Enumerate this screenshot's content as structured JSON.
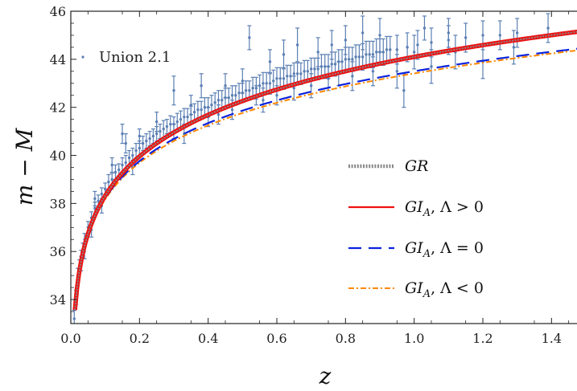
{
  "chart_data": {
    "type": "scatter",
    "xlabel": "z",
    "ylabel": "m − M",
    "xlim": [
      0,
      1.5
    ],
    "ylim": [
      33,
      46
    ],
    "x_ticks": [
      0.0,
      0.2,
      0.4,
      0.6,
      0.8,
      1.0,
      1.2,
      1.4
    ],
    "x_tick_labels": [
      "0.0",
      "0.2",
      "0.4",
      "0.6",
      "0.8",
      "1.0",
      "1.2",
      "1.4"
    ],
    "y_ticks": [
      34,
      36,
      38,
      40,
      42,
      44,
      46
    ],
    "y_tick_labels": [
      "34",
      "36",
      "38",
      "40",
      "42",
      "44",
      "46"
    ],
    "data_legend": {
      "label": "Union 2.1",
      "position": "top-left"
    },
    "legend_position": "center-right",
    "data_color": "#5b7fb3",
    "data_series": {
      "name": "Union 2.1",
      "points": [
        [
          0.01,
          33.2,
          0.35
        ],
        [
          0.015,
          34.1,
          0.3
        ],
        [
          0.02,
          35.0,
          0.3
        ],
        [
          0.025,
          35.4,
          0.25
        ],
        [
          0.03,
          35.8,
          0.25
        ],
        [
          0.035,
          36.1,
          0.25
        ],
        [
          0.04,
          36.5,
          0.25
        ],
        [
          0.05,
          37.0,
          0.25
        ],
        [
          0.06,
          37.4,
          0.25
        ],
        [
          0.07,
          37.8,
          0.25
        ],
        [
          0.08,
          38.1,
          0.25
        ],
        [
          0.09,
          38.4,
          0.25
        ],
        [
          0.1,
          38.6,
          0.25
        ],
        [
          0.12,
          39.0,
          0.25
        ],
        [
          0.14,
          39.4,
          0.25
        ],
        [
          0.16,
          39.7,
          0.3
        ],
        [
          0.18,
          40.0,
          0.3
        ],
        [
          0.2,
          40.3,
          0.3
        ],
        [
          0.22,
          40.6,
          0.3
        ],
        [
          0.24,
          40.8,
          0.3
        ],
        [
          0.26,
          41.0,
          0.3
        ],
        [
          0.28,
          41.2,
          0.3
        ],
        [
          0.3,
          41.3,
          0.3
        ],
        [
          0.32,
          41.5,
          0.35
        ],
        [
          0.34,
          41.6,
          0.35
        ],
        [
          0.36,
          41.8,
          0.35
        ],
        [
          0.38,
          41.9,
          0.35
        ],
        [
          0.4,
          42.0,
          0.4
        ],
        [
          0.42,
          42.2,
          0.4
        ],
        [
          0.44,
          42.3,
          0.4
        ],
        [
          0.46,
          42.4,
          0.4
        ],
        [
          0.48,
          42.5,
          0.4
        ],
        [
          0.5,
          42.6,
          0.4
        ],
        [
          0.52,
          42.7,
          0.4
        ],
        [
          0.54,
          42.8,
          0.45
        ],
        [
          0.56,
          43.0,
          0.45
        ],
        [
          0.58,
          43.0,
          0.45
        ],
        [
          0.6,
          43.2,
          0.45
        ],
        [
          0.62,
          43.2,
          0.45
        ],
        [
          0.64,
          43.3,
          0.45
        ],
        [
          0.66,
          43.4,
          0.45
        ],
        [
          0.68,
          43.5,
          0.45
        ],
        [
          0.7,
          43.6,
          0.45
        ],
        [
          0.72,
          43.6,
          0.45
        ],
        [
          0.74,
          43.7,
          0.5
        ],
        [
          0.76,
          43.8,
          0.5
        ],
        [
          0.78,
          43.9,
          0.5
        ],
        [
          0.8,
          44.0,
          0.5
        ],
        [
          0.82,
          44.0,
          0.5
        ],
        [
          0.84,
          44.1,
          0.5
        ],
        [
          0.86,
          44.2,
          0.55
        ],
        [
          0.88,
          44.2,
          0.55
        ],
        [
          0.9,
          44.3,
          0.55
        ],
        [
          0.92,
          44.4,
          0.55
        ],
        [
          0.95,
          44.4,
          0.6
        ],
        [
          0.98,
          44.5,
          0.6
        ],
        [
          1.01,
          44.6,
          0.6
        ],
        [
          1.05,
          44.7,
          0.6
        ],
        [
          1.1,
          44.8,
          0.6
        ],
        [
          1.15,
          44.9,
          0.6
        ],
        [
          1.2,
          45.0,
          0.6
        ],
        [
          1.25,
          45.0,
          0.6
        ],
        [
          1.3,
          45.1,
          0.6
        ],
        [
          1.39,
          45.3,
          0.6
        ],
        [
          0.11,
          38.9,
          0.3
        ],
        [
          0.13,
          39.3,
          0.3
        ],
        [
          0.15,
          39.6,
          0.3
        ],
        [
          0.17,
          39.9,
          0.3
        ],
        [
          0.19,
          40.2,
          0.3
        ],
        [
          0.21,
          40.5,
          0.3
        ],
        [
          0.23,
          40.7,
          0.3
        ],
        [
          0.25,
          40.9,
          0.3
        ],
        [
          0.27,
          41.1,
          0.35
        ],
        [
          0.29,
          41.3,
          0.35
        ],
        [
          0.31,
          41.4,
          0.35
        ],
        [
          0.33,
          41.6,
          0.35
        ],
        [
          0.35,
          41.7,
          0.35
        ],
        [
          0.37,
          41.9,
          0.35
        ],
        [
          0.39,
          42.0,
          0.4
        ],
        [
          0.41,
          42.1,
          0.4
        ],
        [
          0.43,
          42.3,
          0.4
        ],
        [
          0.45,
          42.4,
          0.4
        ],
        [
          0.47,
          42.5,
          0.4
        ],
        [
          0.49,
          42.6,
          0.4
        ],
        [
          0.51,
          42.7,
          0.4
        ],
        [
          0.53,
          42.8,
          0.45
        ],
        [
          0.55,
          42.9,
          0.45
        ],
        [
          0.57,
          43.0,
          0.45
        ],
        [
          0.59,
          43.1,
          0.45
        ],
        [
          0.61,
          43.2,
          0.45
        ],
        [
          0.63,
          43.3,
          0.45
        ],
        [
          0.65,
          43.4,
          0.45
        ],
        [
          0.67,
          43.4,
          0.45
        ],
        [
          0.69,
          43.5,
          0.45
        ],
        [
          0.71,
          43.6,
          0.45
        ],
        [
          0.73,
          43.7,
          0.5
        ],
        [
          0.75,
          43.7,
          0.5
        ],
        [
          0.77,
          43.8,
          0.5
        ],
        [
          0.79,
          43.9,
          0.5
        ],
        [
          0.81,
          44.0,
          0.5
        ],
        [
          0.83,
          44.1,
          0.5
        ],
        [
          0.85,
          44.1,
          0.55
        ],
        [
          0.87,
          44.2,
          0.55
        ],
        [
          0.89,
          44.3,
          0.55
        ],
        [
          0.91,
          44.3,
          0.55
        ],
        [
          0.93,
          44.4,
          0.55
        ],
        [
          0.16,
          40.5,
          0.4
        ],
        [
          0.2,
          40.8,
          0.3
        ],
        [
          0.25,
          41.4,
          0.4
        ],
        [
          0.3,
          41.0,
          0.3
        ],
        [
          0.35,
          42.1,
          0.4
        ],
        [
          0.38,
          42.9,
          0.5
        ],
        [
          0.4,
          41.6,
          0.4
        ],
        [
          0.45,
          42.9,
          0.5
        ],
        [
          0.47,
          41.9,
          0.4
        ],
        [
          0.5,
          43.1,
          0.5
        ],
        [
          0.52,
          44.9,
          0.5
        ],
        [
          0.54,
          42.5,
          0.4
        ],
        [
          0.58,
          43.9,
          0.5
        ],
        [
          0.6,
          42.5,
          0.4
        ],
        [
          0.62,
          44.2,
          0.6
        ],
        [
          0.65,
          42.8,
          0.5
        ],
        [
          0.66,
          44.6,
          0.7
        ],
        [
          0.7,
          42.9,
          0.5
        ],
        [
          0.72,
          44.3,
          0.6
        ],
        [
          0.75,
          43.2,
          0.5
        ],
        [
          0.76,
          44.6,
          0.6
        ],
        [
          0.78,
          43.4,
          0.5
        ],
        [
          0.8,
          44.8,
          0.6
        ],
        [
          0.82,
          43.3,
          0.6
        ],
        [
          0.85,
          45.1,
          0.7
        ],
        [
          0.88,
          43.5,
          0.6
        ],
        [
          0.9,
          45.0,
          0.7
        ],
        [
          0.95,
          43.5,
          0.7
        ],
        [
          0.97,
          42.7,
          0.7
        ],
        [
          1.0,
          44.3,
          0.7
        ],
        [
          1.05,
          43.7,
          0.7
        ],
        [
          1.12,
          44.3,
          0.7
        ],
        [
          1.2,
          43.9,
          0.7
        ],
        [
          1.29,
          44.5,
          0.7
        ],
        [
          1.03,
          45.3,
          0.5
        ],
        [
          1.1,
          45.1,
          0.6
        ],
        [
          0.3,
          42.7,
          0.6
        ],
        [
          0.33,
          40.9,
          0.4
        ],
        [
          0.43,
          41.7,
          0.4
        ],
        [
          0.56,
          42.3,
          0.5
        ],
        [
          0.15,
          40.9,
          0.4
        ],
        [
          0.18,
          39.5,
          0.3
        ],
        [
          0.12,
          39.6,
          0.3
        ],
        [
          0.09,
          37.9,
          0.3
        ],
        [
          0.06,
          36.9,
          0.3
        ],
        [
          0.04,
          36.0,
          0.3
        ],
        [
          0.03,
          35.5,
          0.3
        ],
        [
          0.07,
          38.2,
          0.3
        ]
      ]
    },
    "models": {
      "omega_m_gr": 0.3,
      "omega_m_pos": 0.3,
      "omega_l_pos": 0.7,
      "omega_m_zero": 1.0,
      "omega_m_neg": 1.0,
      "omega_l_neg": -0.5
    },
    "series": [
      {
        "name": "GR",
        "color": "#888888",
        "style": "dotted"
      },
      {
        "name": "GI_A, Λ > 0",
        "color": "#ee1111",
        "style": "solid"
      },
      {
        "name": "GI_A, Λ = 0",
        "color": "#0a22dd",
        "style": "dashed"
      },
      {
        "name": "GI_A, Λ < 0",
        "color": "#ff8800",
        "style": "dashdot"
      }
    ]
  }
}
